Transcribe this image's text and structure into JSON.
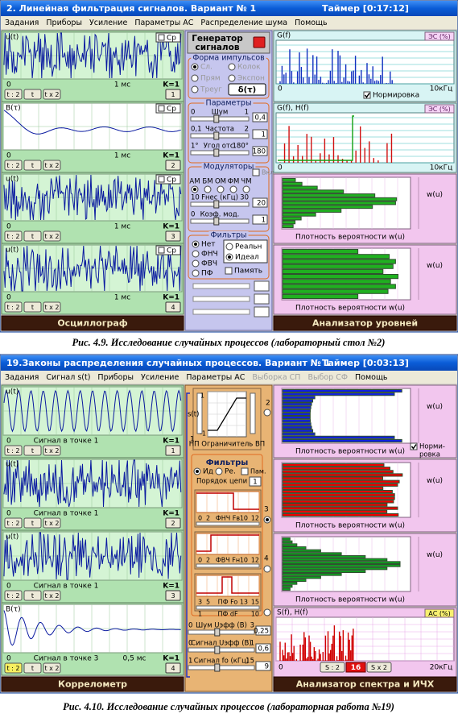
{
  "window1": {
    "title": "2. Линейная фильтрация сигналов.   Вариант № 1",
    "timer": "Таймер [0:17:12]",
    "menu": [
      "Задания",
      "Приборы",
      "Усиление",
      "Параметры АС",
      "Распределение шума",
      "Помощь"
    ],
    "scope": {
      "panels": [
        {
          "label": "u(t)",
          "origin": "0",
          "time": "1 мс",
          "gain": "K=1",
          "channel": "1"
        },
        {
          "label": "B(τ)",
          "origin": "0",
          "time": "1 мс",
          "gain": "K=1",
          "channel": "2"
        },
        {
          "label": "u(t)",
          "origin": "0",
          "time": "1 мс",
          "gain": "K=1",
          "channel": "3"
        },
        {
          "label": "u(t)",
          "origin": "0",
          "time": "1 мс",
          "gain": "K=1",
          "channel": "4"
        }
      ],
      "buttons": [
        "t : 2",
        "t",
        "t x 2"
      ],
      "avg": "Ср",
      "footer": "Осциллограф"
    },
    "generator": [
      "Генератор",
      "сигналов"
    ],
    "pulse": {
      "title": "Форма импульсов",
      "options": [
        "Сл.",
        "Колок",
        "Прям",
        "Экспон",
        "Треуг",
        "δ(τ)"
      ]
    },
    "params": {
      "title": "Параметры",
      "sliders": [
        {
          "min": "0",
          "label": "Шум",
          "max": "1",
          "value": "0,4"
        },
        {
          "min": "0,1",
          "label": "Частота",
          "max": "2",
          "value": "1"
        },
        {
          "min": "1°",
          "label": "Угол отс.",
          "max": "180°",
          "value": "180"
        }
      ]
    },
    "modulators": {
      "title": "Модуляторы",
      "on": "Вкл",
      "types": [
        "АМ",
        "БМ",
        "ОМ",
        "ФМ",
        "ЧМ"
      ],
      "sliders": [
        {
          "min": "10",
          "label": "Fнес (кГц)",
          "max": "30",
          "value": "20"
        },
        {
          "min": "0",
          "label": "Коэф. мод.",
          "value": "1"
        }
      ]
    },
    "filters": {
      "title": "Фильтры",
      "types": [
        "Нет",
        "ФНЧ",
        "ФВЧ",
        "ПФ"
      ],
      "modes": [
        "Реальн",
        "Идеал"
      ],
      "memory": "Память"
    },
    "analyzer": {
      "spectrum": [
        {
          "label": "G(f)",
          "tag": "ЭС (%)",
          "origin": "0",
          "max": "10кГц"
        },
        {
          "label": "G(f), H(f)",
          "tag": "ЭС (%)",
          "origin": "0",
          "max": "10кГц"
        }
      ],
      "normalize": "Нормировка",
      "density": [
        {
          "axis": "w(u)",
          "caption": "Плотность вероятности w(u)"
        },
        {
          "axis": "w(u)",
          "caption": "Плотность вероятности w(u)"
        }
      ],
      "footer": "Анализатор уровней"
    }
  },
  "caption1": "Рис. 4.9. Исследование случайных процессов (лабораторный стол №2)",
  "window2": {
    "title": "19.Законы распределения случайных процессов.   Вариант № 1",
    "timer": "Таймер [0:03:13]",
    "menu": [
      "Задания",
      "Сигнал s(t)",
      "Приборы",
      "Усиление",
      "Параметры АС",
      "Выборка СП",
      "Выбор СФ",
      "Помощь"
    ],
    "scope": {
      "panels": [
        {
          "label": "u(t)",
          "origin": "0",
          "caption": "Сигнал в точке 1",
          "gain": "K=1",
          "channel": "1"
        },
        {
          "label": "u(t)",
          "origin": "0",
          "caption": "Сигнал в точке 1",
          "gain": "K=1",
          "channel": "2"
        },
        {
          "label": "u(t)",
          "origin": "0",
          "caption": "Сигнал в точке 1",
          "gain": "K=1",
          "channel": "3"
        },
        {
          "label": "B(τ)",
          "origin": "0",
          "caption": "Сигнал в точке 3",
          "time": "0,5 мс",
          "gain": "K=1",
          "channel": "4"
        }
      ],
      "buttons": [
        "t : 2",
        "t",
        "t x 2"
      ],
      "footer": "Коррелометр"
    },
    "limiter": {
      "signal": "s(t)",
      "top": "1",
      "bottom": "-1",
      "label": "НП Ограничитель ВП"
    },
    "points": [
      "1",
      "2",
      "3",
      "4"
    ],
    "filters": {
      "title": "Фильтры",
      "modes": [
        "Ид",
        "Ре.",
        "Пам."
      ],
      "order": "Порядок цепи",
      "order_value": "1",
      "plots": [
        {
          "scale": [
            "0",
            "2",
            "10",
            "12"
          ],
          "label": "ФНЧ Fв"
        },
        {
          "scale": [
            "0",
            "2",
            "10",
            "12"
          ],
          "label": "ФВЧ Fн"
        },
        {
          "scale": [
            "3",
            "5",
            "13",
            "15"
          ],
          "label": "ПФ Fo"
        }
      ],
      "width": {
        "min": "1",
        "label": "ПФ dF",
        "max": "10"
      }
    },
    "sliders": [
      {
        "min": "0",
        "label": "Шум Uэфф (В)",
        "max": "3",
        "value": "0,25"
      },
      {
        "min": "0",
        "label": "Сигнал Uэфф (В)",
        "max": "1",
        "value": "0,6"
      },
      {
        "min": "1",
        "label": "Сигнал fo (кГц)",
        "max": "15",
        "value": "9"
      }
    ],
    "analyzer": {
      "density": [
        {
          "axis": "w(u)",
          "caption": "Плотность вероятности w(u)"
        },
        {
          "axis": "w(u)",
          "caption": "Плотность вероятности w(u)"
        },
        {
          "axis": "w(u)",
          "caption": "Плотность вероятности w(u)"
        }
      ],
      "normalize": [
        "Норми-",
        "ровка"
      ],
      "spectrum": {
        "label": "S(f), H(f)",
        "tag": "АС (%)",
        "origin": "0",
        "max": "20кГц",
        "zoom_out": "S : 2",
        "zoom_value": "16",
        "zoom_in": "S x 2"
      },
      "footer": "Анализатор спектра и ИЧХ"
    }
  },
  "caption2": "Рис. 4.10. Исследование случайных процессов (лабораторная работа №19)"
}
